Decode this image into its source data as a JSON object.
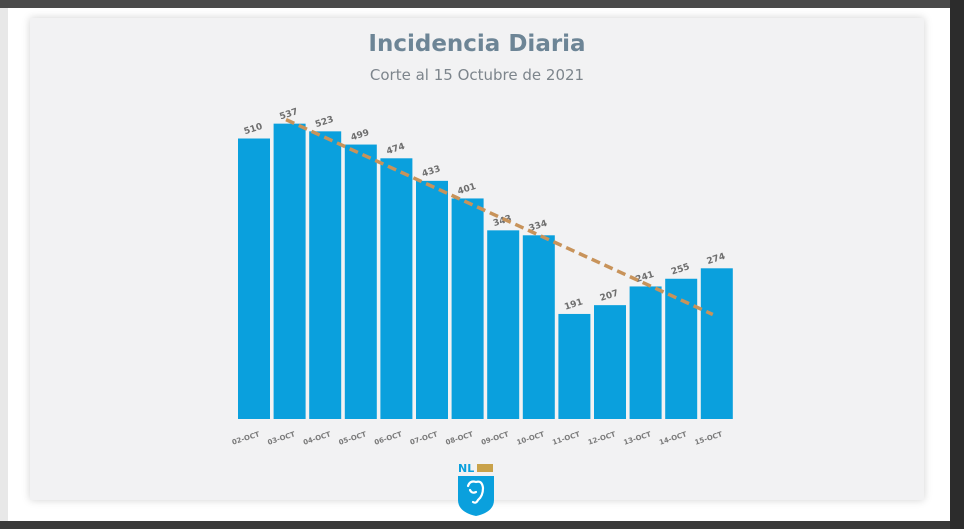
{
  "chart_data": {
    "type": "bar",
    "title": "Incidencia Diaria",
    "subtitle": "Corte al 15 Octubre de 2021",
    "categories": [
      "02-OCT",
      "03-OCT",
      "04-OCT",
      "05-OCT",
      "06-OCT",
      "07-OCT",
      "08-OCT",
      "09-OCT",
      "10-OCT",
      "11-OCT",
      "12-OCT",
      "13-OCT",
      "14-OCT",
      "15-OCT"
    ],
    "values": [
      510,
      537,
      523,
      499,
      474,
      433,
      401,
      343,
      334,
      191,
      207,
      241,
      255,
      274
    ],
    "value_labels": [
      "510",
      "537",
      "523",
      "499",
      "474",
      "433",
      "401",
      "343",
      "334",
      "191",
      "207",
      "241",
      "255",
      "274"
    ],
    "ylim": [
      0,
      560
    ],
    "xlabel": "",
    "ylabel": "",
    "grid": false,
    "trendline": {
      "style": "dashed",
      "start_value": 537,
      "end_value": 190
    },
    "colors": {
      "bar": "#0aa0dd",
      "trend": "#c8935a",
      "label": "#6e6e6e",
      "title": "#6d8596"
    }
  },
  "logo": {
    "text": "NL",
    "icon": "nuevo-leon-shield-icon"
  }
}
